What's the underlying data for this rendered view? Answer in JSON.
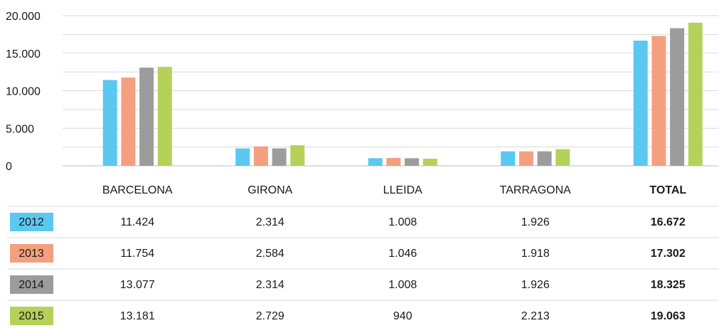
{
  "chart_data": {
    "type": "bar",
    "categories": [
      "BARCELONA",
      "GIRONA",
      "LLEIDA",
      "TARRAGONA",
      "TOTAL"
    ],
    "series": [
      {
        "name": "2012",
        "color": "#5bc8f0",
        "values": [
          11424,
          2314,
          1008,
          1926,
          16672
        ],
        "value_labels": [
          "11.424",
          "2.314",
          "1.008",
          "1.926",
          "16.672"
        ]
      },
      {
        "name": "2013",
        "color": "#f4a07f",
        "values": [
          11754,
          2584,
          1046,
          1918,
          17302
        ],
        "value_labels": [
          "11.754",
          "2.584",
          "1.046",
          "1.918",
          "17.302"
        ]
      },
      {
        "name": "2014",
        "color": "#9c9c9c",
        "values": [
          13077,
          2314,
          1008,
          1926,
          18325
        ],
        "value_labels": [
          "13.077",
          "2.314",
          "1.008",
          "1.926",
          "18.325"
        ]
      },
      {
        "name": "2015",
        "color": "#b5d15a",
        "values": [
          13181,
          2729,
          940,
          2213,
          19063
        ],
        "value_labels": [
          "13.181",
          "2.729",
          "940",
          "2.213",
          "19.063"
        ]
      }
    ],
    "ylim": [
      0,
      20000
    ],
    "yticks": [
      0,
      {
        "value": 5000,
        "label": "5.000"
      },
      {
        "value": 10000,
        "label": "10.000"
      },
      {
        "value": 15000,
        "label": "15.000"
      },
      {
        "value": 20000,
        "label": "20.000"
      }
    ],
    "minor_yticks": [
      2500,
      7500,
      12500,
      17500
    ],
    "grid": true
  }
}
